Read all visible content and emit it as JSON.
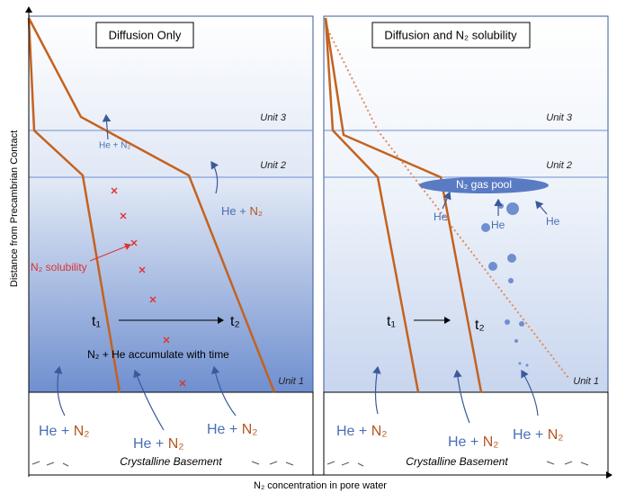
{
  "axes": {
    "y_label": "Distance from Precambrian Contact",
    "x_label": "N₂ concentration in pore water"
  },
  "left_panel": {
    "title": "Diffusion Only",
    "unit3": "Unit 3",
    "unit2": "Unit 2",
    "unit1": "Unit 1",
    "top_flux": "He + N₂",
    "side_flux": {
      "he": "He +",
      "n2": "N₂"
    },
    "solubility": "N₂ solubility",
    "t1": "t₁",
    "t2": "t₂",
    "note": "N₂ + He accumulate with time",
    "bottom_fluxes": [
      {
        "he": "He +",
        "n2": "N₂"
      },
      {
        "he": "He +",
        "n2": "N₂"
      },
      {
        "he": "He +",
        "n2": "N₂"
      }
    ],
    "basement": "Crystalline Basement"
  },
  "right_panel": {
    "title": "Diffusion and N₂ solubility",
    "unit3": "Unit 3",
    "unit2": "Unit 2",
    "unit1": "Unit 1",
    "gas_pool": "N₂ gas pool",
    "he_labels": [
      "He",
      "He",
      "He"
    ],
    "t1": "t₁",
    "t2": "t₂",
    "bottom_fluxes": [
      {
        "he": "He +",
        "n2": "N₂"
      },
      {
        "he": "He +",
        "n2": "N₂"
      },
      {
        "he": "He +",
        "n2": "N₂"
      }
    ],
    "basement": "Crystalline Basement"
  }
}
